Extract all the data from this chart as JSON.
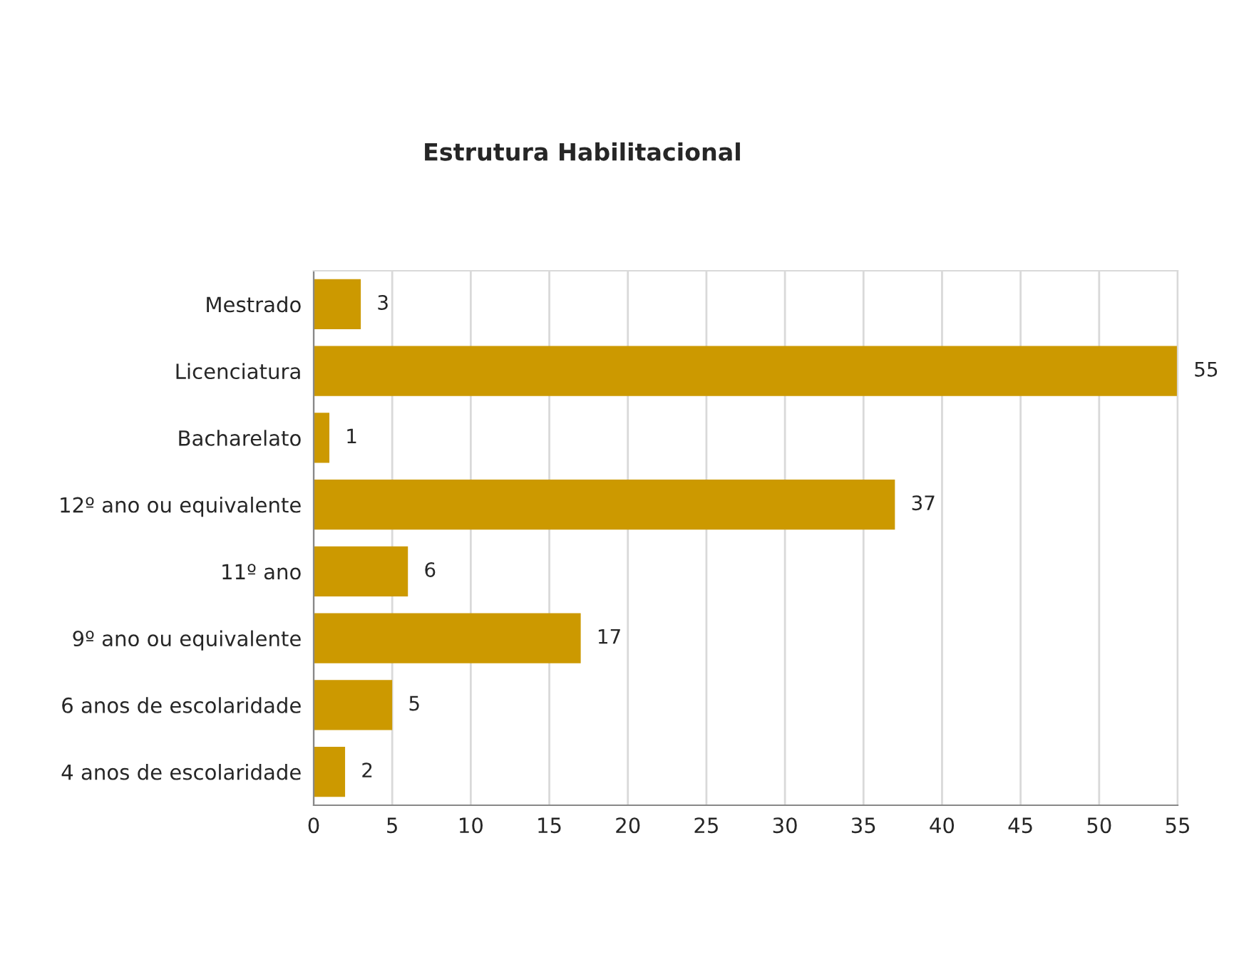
{
  "chart_data": {
    "type": "bar",
    "orientation": "horizontal",
    "title": "Estrutura Habilitacional",
    "categories": [
      "Mestrado",
      "Licenciatura",
      "Bacharelato",
      "12º ano ou equivalente",
      "11º ano",
      "9º ano ou equivalente",
      "6 anos de escolaridade",
      "4 anos de escolaridade"
    ],
    "values": [
      3,
      55,
      1,
      37,
      6,
      17,
      5,
      2
    ],
    "color": "#cc9900",
    "xlim": [
      0,
      55
    ],
    "xticks": [
      0,
      5,
      10,
      15,
      20,
      25,
      30,
      35,
      40,
      45,
      50,
      55
    ],
    "grid": "x",
    "data_labels": true
  }
}
